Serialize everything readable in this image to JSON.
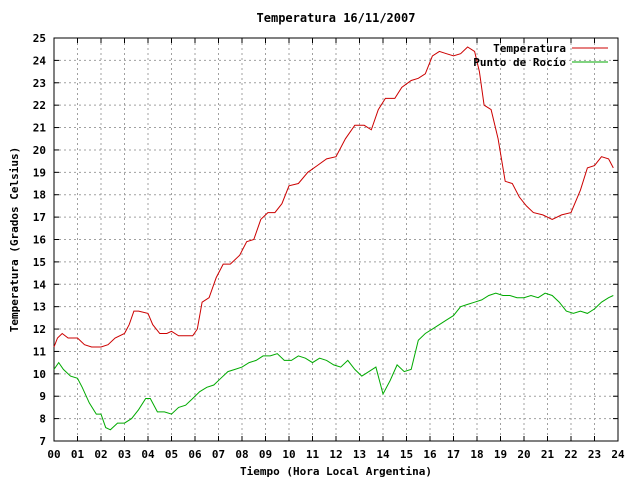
{
  "chart_data": {
    "type": "line",
    "title": "Temperatura 16/11/2007",
    "xlabel": "Tiempo (Hora Local Argentina)",
    "ylabel": "Temperatura (Grados Celsius)",
    "xlim": [
      0,
      24
    ],
    "ylim": [
      7,
      25
    ],
    "grid": true,
    "legend_position": "top-right",
    "x_ticks": [
      "00",
      "01",
      "02",
      "03",
      "04",
      "05",
      "06",
      "07",
      "08",
      "09",
      "10",
      "11",
      "12",
      "13",
      "14",
      "15",
      "16",
      "17",
      "18",
      "19",
      "20",
      "21",
      "22",
      "23",
      "24"
    ],
    "y_ticks": [
      "7",
      "8",
      "9",
      "10",
      "11",
      "12",
      "13",
      "14",
      "15",
      "16",
      "17",
      "18",
      "19",
      "20",
      "21",
      "22",
      "23",
      "24",
      "25"
    ],
    "series": [
      {
        "name": "Temperatura",
        "color": "#cc0000",
        "x": [
          0.0,
          0.15,
          0.35,
          0.6,
          1.0,
          1.3,
          1.6,
          2.0,
          2.3,
          2.6,
          3.0,
          3.2,
          3.4,
          3.6,
          4.0,
          4.2,
          4.5,
          4.8,
          5.0,
          5.3,
          5.6,
          5.9,
          6.1,
          6.3,
          6.6,
          6.9,
          7.2,
          7.5,
          7.9,
          8.2,
          8.5,
          8.8,
          9.1,
          9.4,
          9.7,
          10.0,
          10.4,
          10.8,
          11.2,
          11.6,
          12.0,
          12.4,
          12.8,
          13.2,
          13.5,
          13.8,
          14.1,
          14.5,
          14.8,
          15.2,
          15.5,
          15.8,
          16.1,
          16.4,
          16.7,
          17.0,
          17.3,
          17.6,
          17.9,
          18.1,
          18.3,
          18.6,
          18.9,
          19.2,
          19.5,
          19.8,
          20.1,
          20.4,
          20.8,
          21.2,
          21.6,
          22.0,
          22.4,
          22.7,
          23.0,
          23.3,
          23.6,
          23.8
        ],
        "y": [
          11.2,
          11.6,
          11.8,
          11.6,
          11.6,
          11.3,
          11.2,
          11.2,
          11.3,
          11.6,
          11.8,
          12.2,
          12.8,
          12.8,
          12.7,
          12.2,
          11.8,
          11.8,
          11.9,
          11.7,
          11.7,
          11.7,
          12.0,
          13.2,
          13.4,
          14.3,
          14.9,
          14.9,
          15.3,
          15.9,
          16.0,
          16.9,
          17.2,
          17.2,
          17.6,
          18.4,
          18.5,
          19.0,
          19.3,
          19.6,
          19.7,
          20.5,
          21.1,
          21.1,
          20.9,
          21.8,
          22.3,
          22.3,
          22.8,
          23.1,
          23.2,
          23.4,
          24.2,
          24.4,
          24.3,
          24.2,
          24.3,
          24.6,
          24.4,
          23.5,
          22.0,
          21.8,
          20.5,
          18.6,
          18.5,
          17.9,
          17.5,
          17.2,
          17.1,
          16.9,
          17.1,
          17.2,
          18.2,
          19.2,
          19.3,
          19.7,
          19.6,
          19.2
        ]
      },
      {
        "name": "Punto de Rocío",
        "color": "#00aa00",
        "x": [
          0.0,
          0.2,
          0.4,
          0.7,
          1.0,
          1.2,
          1.5,
          1.8,
          2.0,
          2.2,
          2.4,
          2.7,
          3.0,
          3.3,
          3.6,
          3.9,
          4.1,
          4.4,
          4.7,
          5.0,
          5.3,
          5.6,
          5.9,
          6.2,
          6.5,
          6.8,
          7.1,
          7.4,
          7.7,
          8.0,
          8.3,
          8.6,
          8.9,
          9.2,
          9.5,
          9.8,
          10.1,
          10.4,
          10.7,
          11.0,
          11.3,
          11.6,
          11.9,
          12.2,
          12.5,
          12.8,
          13.1,
          13.4,
          13.7,
          14.0,
          14.3,
          14.6,
          14.9,
          15.2,
          15.5,
          15.8,
          16.1,
          16.4,
          16.7,
          17.0,
          17.3,
          17.6,
          17.9,
          18.2,
          18.5,
          18.8,
          19.1,
          19.4,
          19.7,
          20.0,
          20.3,
          20.6,
          20.9,
          21.2,
          21.5,
          21.8,
          22.1,
          22.4,
          22.7,
          23.0,
          23.3,
          23.6,
          23.8
        ],
        "y": [
          10.2,
          10.5,
          10.2,
          9.9,
          9.8,
          9.4,
          8.7,
          8.2,
          8.2,
          7.6,
          7.5,
          7.8,
          7.8,
          8.0,
          8.4,
          8.9,
          8.9,
          8.3,
          8.3,
          8.2,
          8.5,
          8.6,
          8.9,
          9.2,
          9.4,
          9.5,
          9.8,
          10.1,
          10.2,
          10.3,
          10.5,
          10.6,
          10.8,
          10.8,
          10.9,
          10.6,
          10.6,
          10.8,
          10.7,
          10.5,
          10.7,
          10.6,
          10.4,
          10.3,
          10.6,
          10.2,
          9.9,
          10.1,
          10.3,
          9.1,
          9.7,
          10.4,
          10.1,
          10.2,
          11.5,
          11.8,
          12.0,
          12.2,
          12.4,
          12.6,
          13.0,
          13.1,
          13.2,
          13.3,
          13.5,
          13.6,
          13.5,
          13.5,
          13.4,
          13.4,
          13.5,
          13.4,
          13.6,
          13.5,
          13.2,
          12.8,
          12.7,
          12.8,
          12.7,
          12.9,
          13.2,
          13.4,
          13.5
        ]
      }
    ]
  }
}
